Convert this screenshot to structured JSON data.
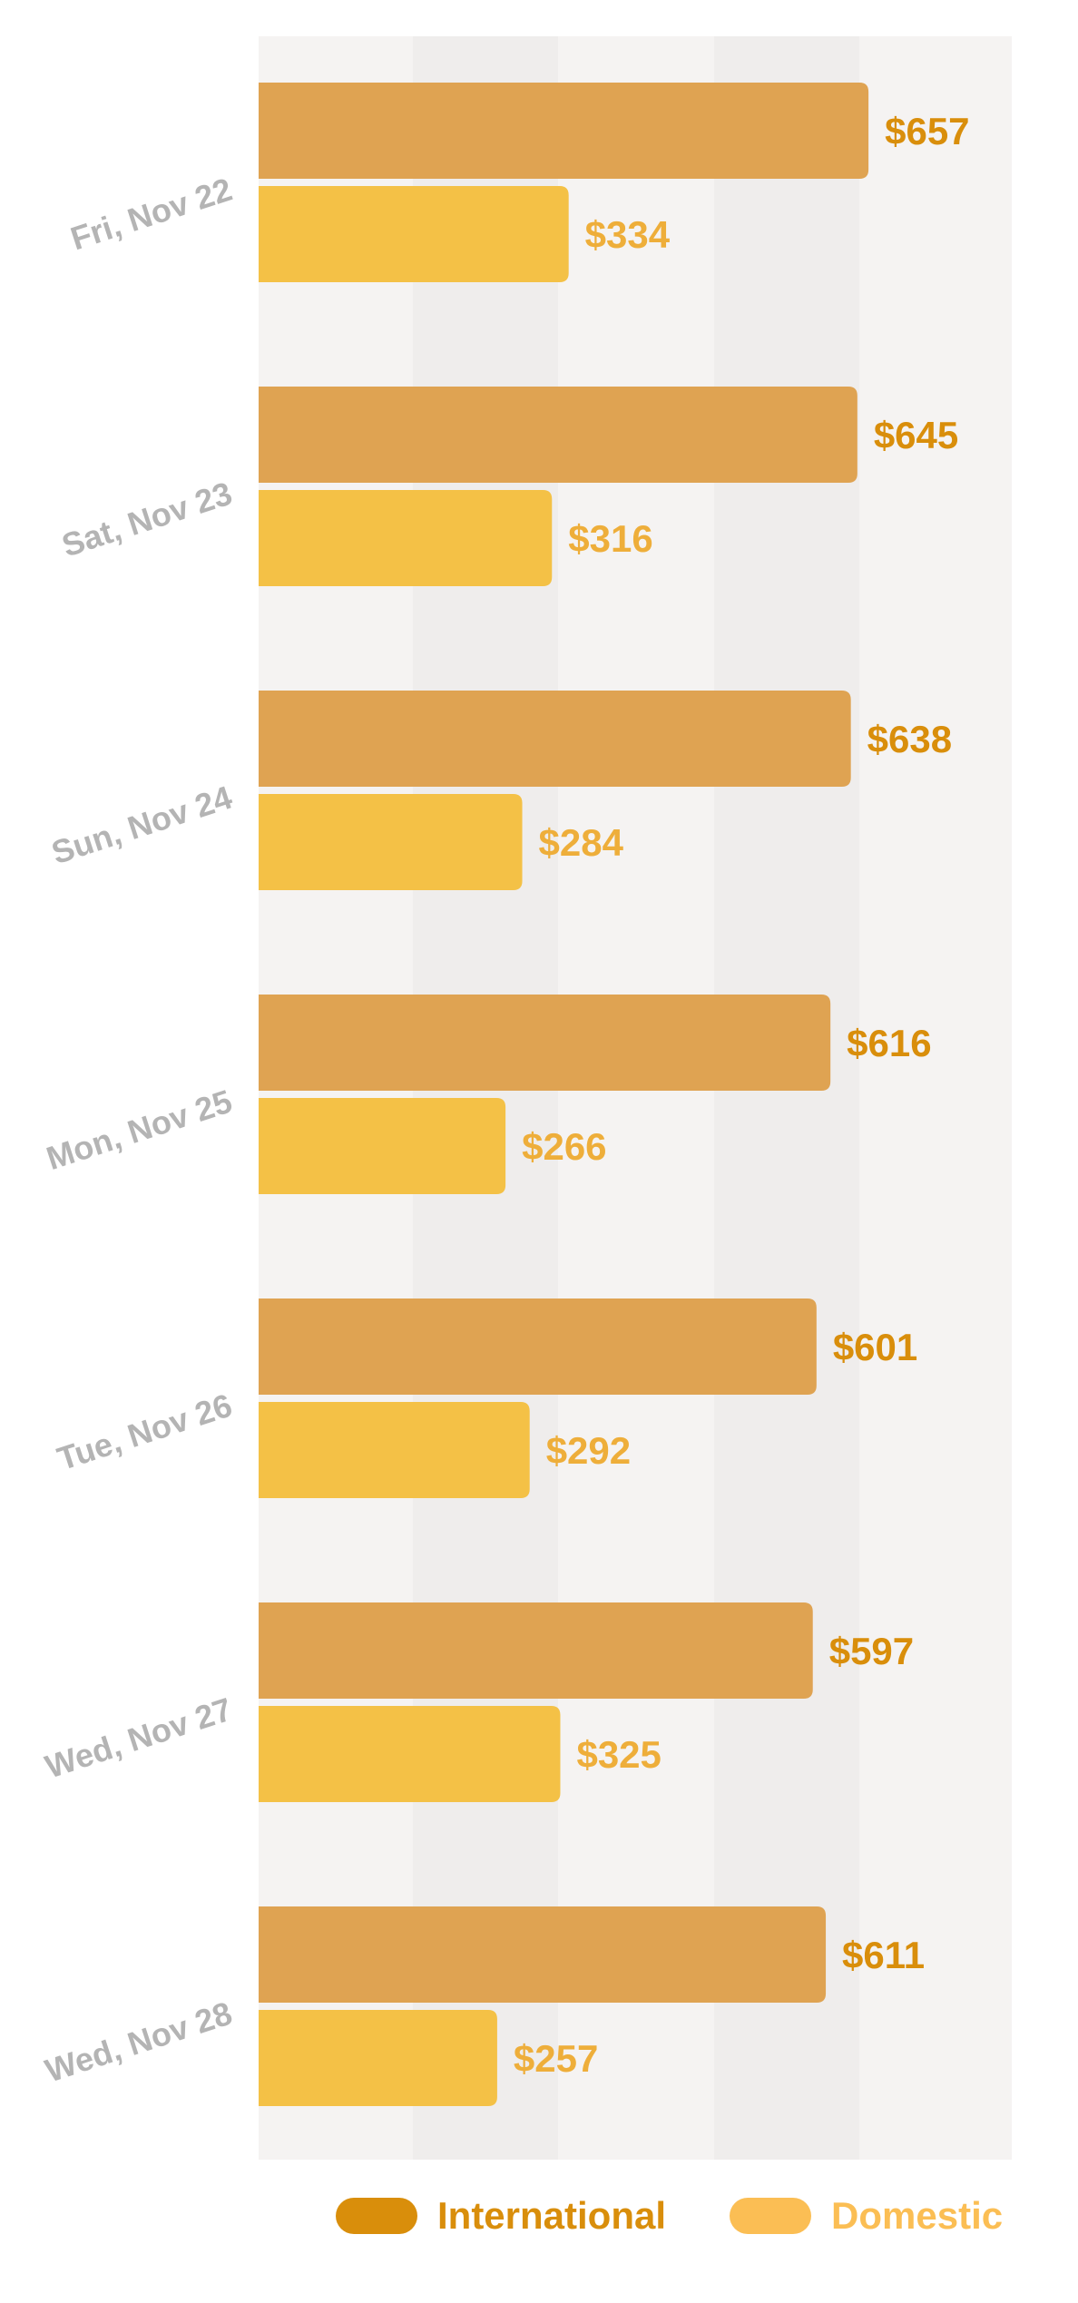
{
  "chart_data": {
    "type": "bar",
    "orientation": "horizontal",
    "categories": [
      "Fri, Nov 22",
      "Sat, Nov 23",
      "Sun, Nov 24",
      "Mon, Nov 25",
      "Tue, Nov 26",
      "Wed, Nov 27",
      "Wed, Nov 28"
    ],
    "series": [
      {
        "name": "International",
        "values": [
          657,
          645,
          638,
          616,
          601,
          597,
          611
        ],
        "labels": [
          "$657",
          "$645",
          "$638",
          "$616",
          "$601",
          "$597",
          "$611"
        ],
        "color": "#dfa352",
        "label_color": "#d98e0b"
      },
      {
        "name": "Domestic",
        "values": [
          334,
          316,
          284,
          266,
          292,
          325,
          257
        ],
        "labels": [
          "$334",
          "$316",
          "$284",
          "$266",
          "$292",
          "$325",
          "$257"
        ],
        "color": "#f4c146",
        "label_color": "#eeae3a"
      }
    ],
    "title": "",
    "xlabel": "",
    "ylabel": "",
    "xlim": [
      0,
      800
    ],
    "grid": "alternating vertical bands",
    "legend_position": "bottom"
  },
  "legend": {
    "items": [
      {
        "label": "International",
        "color": "#d98e0b"
      },
      {
        "label": "Domestic",
        "color": "#fbbe54"
      }
    ]
  }
}
